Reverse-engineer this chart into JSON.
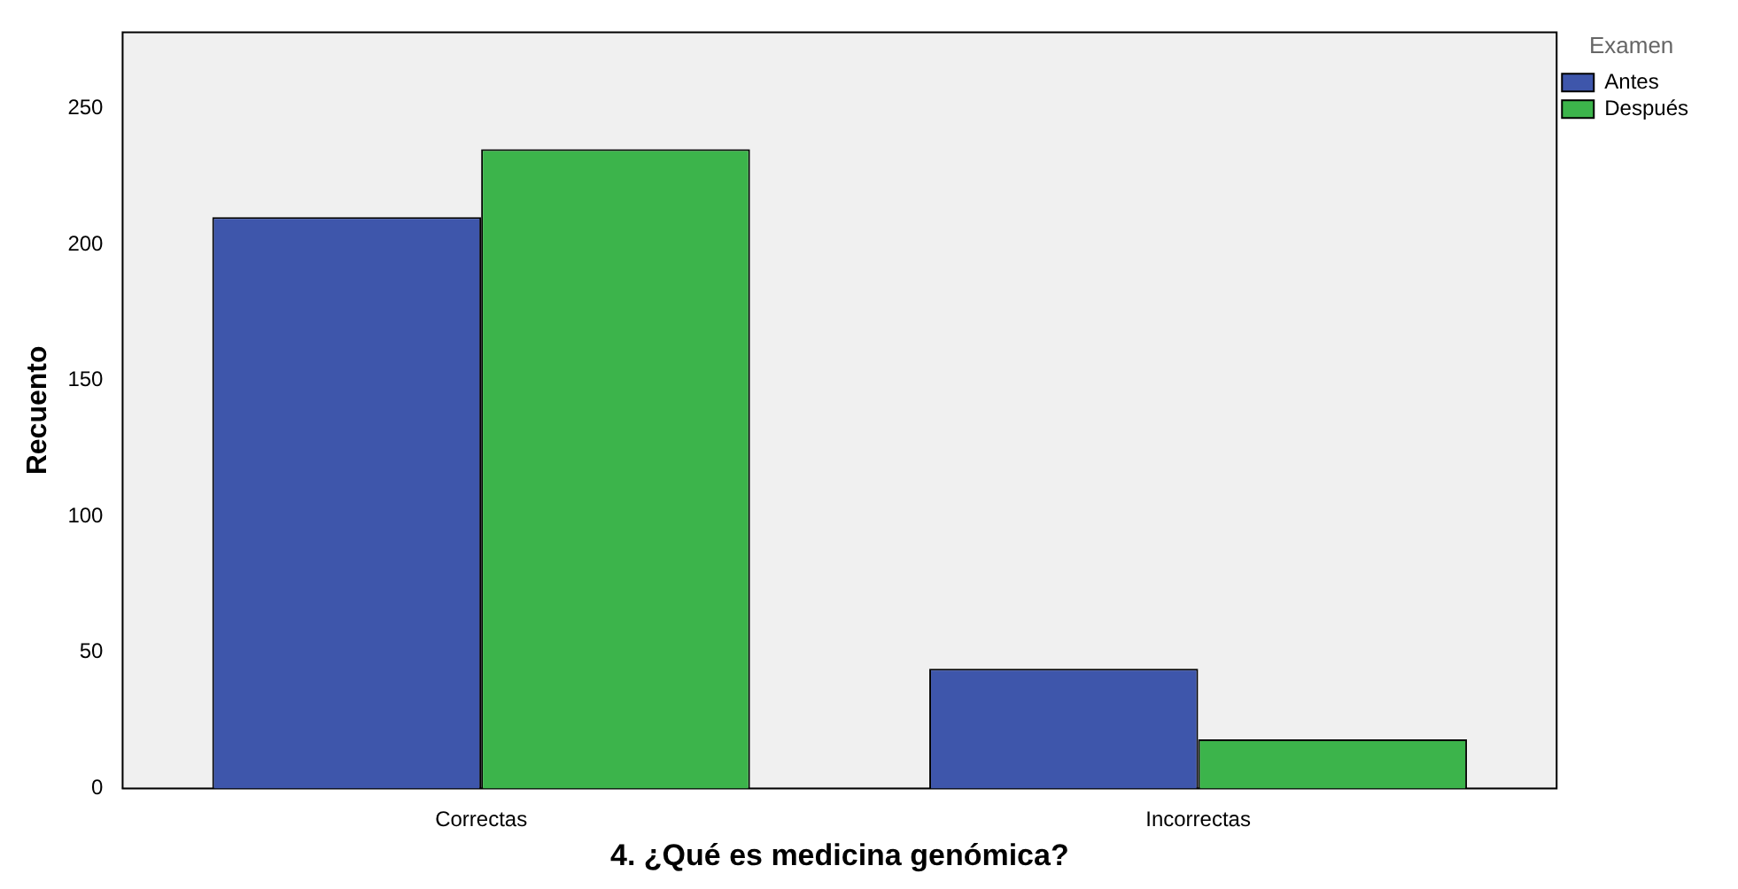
{
  "chart_data": {
    "type": "bar",
    "xlabel": "4. ¿Qué es medicina genómica?",
    "ylabel": "Recuento",
    "legend_title": "Examen",
    "categories": [
      "Correctas",
      "Incorrectas"
    ],
    "series": [
      {
        "name": "Antes",
        "color": "#3e56ab",
        "values": [
          210,
          44
        ]
      },
      {
        "name": "Después",
        "color": "#3cb44b",
        "values": [
          235,
          18
        ]
      }
    ],
    "ylim": [
      0,
      278
    ],
    "yticks": [
      0,
      50,
      100,
      150,
      200,
      250
    ],
    "grid": false,
    "legend": "top right"
  }
}
